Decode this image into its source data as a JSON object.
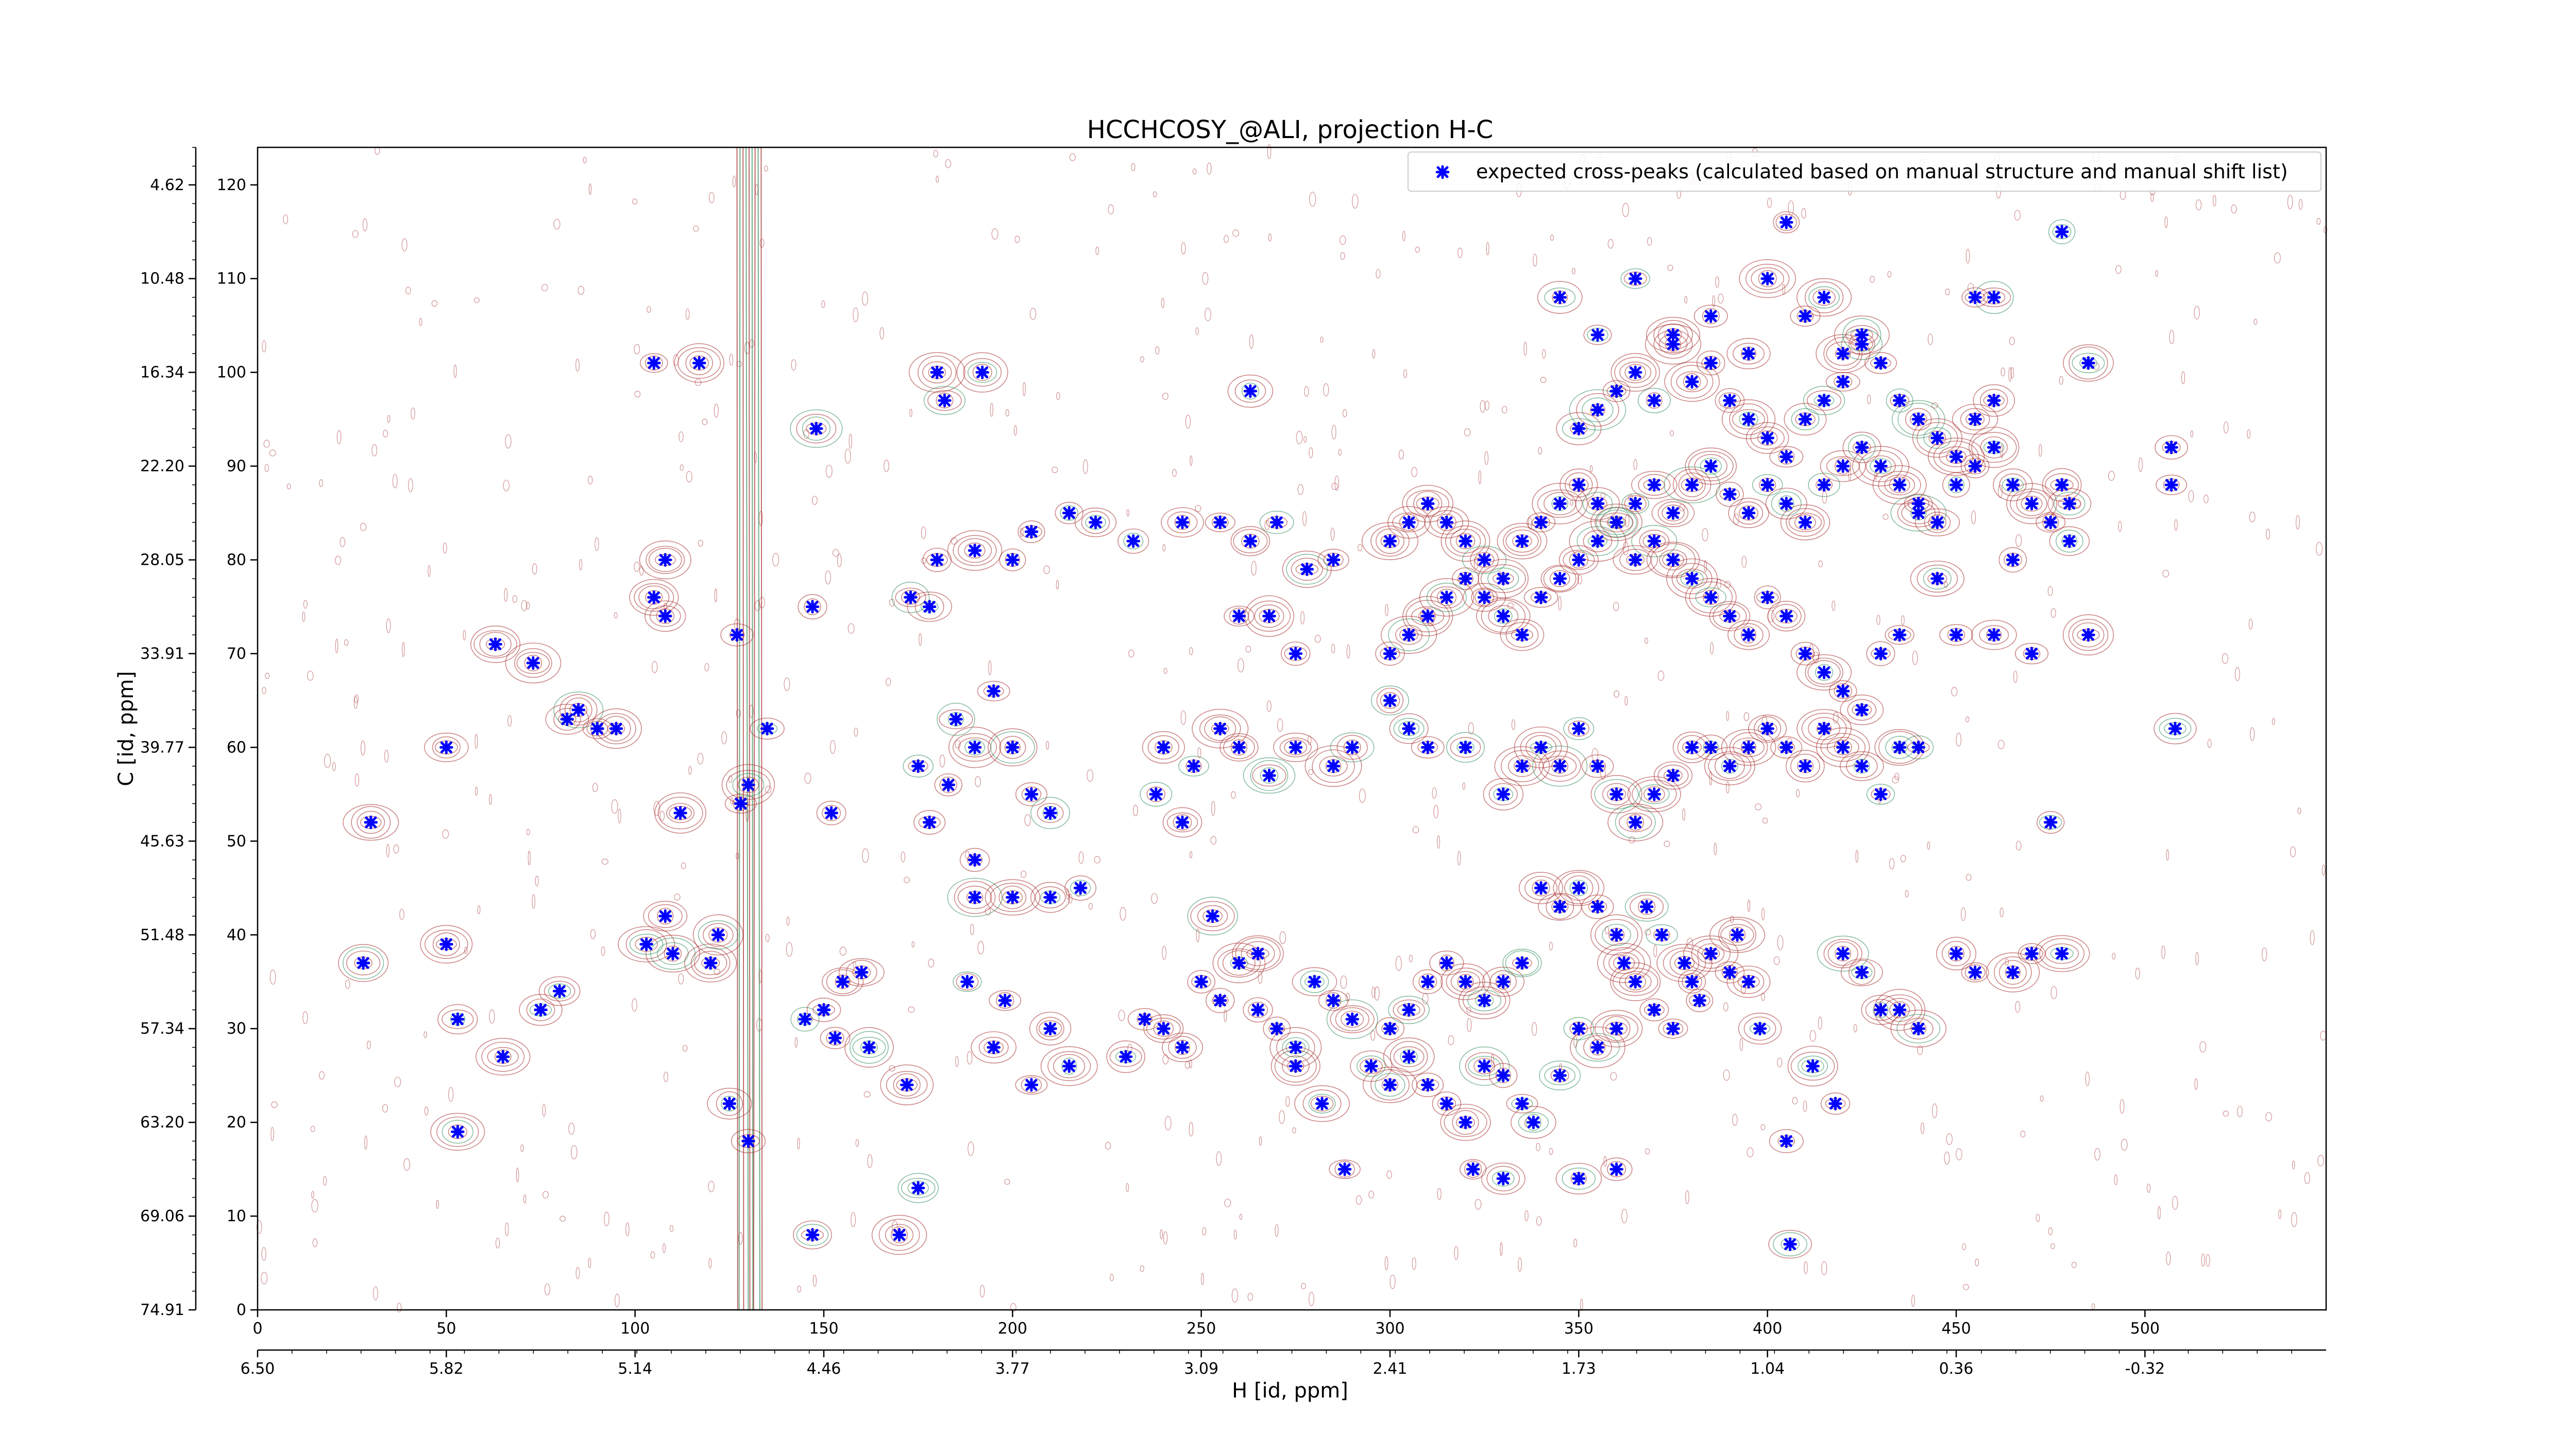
{
  "chart_data": {
    "type": "scatter",
    "title": "HCCHCOSY_@ALI, projection H-C",
    "xlabel": "H [id, ppm]",
    "ylabel": "C [id, ppm]",
    "xlim": [
      0,
      548
    ],
    "ylim": [
      0,
      124
    ],
    "x_ticks_primary": [
      0,
      50,
      100,
      150,
      200,
      250,
      300,
      350,
      400,
      450,
      500
    ],
    "y_ticks_primary": [
      0,
      10,
      20,
      30,
      40,
      50,
      60,
      70,
      80,
      90,
      100,
      110,
      120
    ],
    "x_ticks_secondary": [
      "6.50",
      "5.82",
      "5.14",
      "4.46",
      "3.77",
      "3.09",
      "2.41",
      "1.73",
      "1.04",
      "0.36",
      "-0.32"
    ],
    "y_ticks_secondary": [
      "74.91",
      "69.06",
      "63.20",
      "57.34",
      "51.48",
      "45.63",
      "39.77",
      "33.91",
      "28.05",
      "22.20",
      "16.34",
      "10.48",
      "4.62"
    ],
    "legend": {
      "placement": "upper right",
      "entries": [
        "expected cross-peaks (calculated based on manual structure and manual shift list)"
      ]
    },
    "colors": {
      "marker": "#0000ff",
      "contour_positive": "#a52a2a",
      "contour_negative": "#2e8b57"
    },
    "grid": false,
    "series": [
      {
        "name": "expected cross-peaks (calculated based on manual structure and manual shift list)",
        "points": [
          [
            30,
            52
          ],
          [
            28,
            37
          ],
          [
            50,
            60
          ],
          [
            50,
            39
          ],
          [
            53,
            31
          ],
          [
            53,
            19
          ],
          [
            65,
            27
          ],
          [
            63,
            71
          ],
          [
            73,
            69
          ],
          [
            75,
            32
          ],
          [
            80,
            34
          ],
          [
            82,
            63
          ],
          [
            85,
            64
          ],
          [
            90,
            62
          ],
          [
            95,
            62
          ],
          [
            105,
            76
          ],
          [
            108,
            74
          ],
          [
            103,
            39
          ],
          [
            108,
            42
          ],
          [
            110,
            38
          ],
          [
            112,
            53
          ],
          [
            108,
            80
          ],
          [
            105,
            101
          ],
          [
            117,
            101
          ],
          [
            120,
            37
          ],
          [
            122,
            40
          ],
          [
            127,
            72
          ],
          [
            130,
            56
          ],
          [
            135,
            62
          ],
          [
            130,
            18
          ],
          [
            125,
            22
          ],
          [
            128,
            54
          ],
          [
            145,
            31
          ],
          [
            147,
            8
          ],
          [
            148,
            94
          ],
          [
            150,
            32
          ],
          [
            147,
            75
          ],
          [
            153,
            29
          ],
          [
            155,
            35
          ],
          [
            152,
            53
          ],
          [
            160,
            36
          ],
          [
            162,
            28
          ],
          [
            170,
            8
          ],
          [
            172,
            24
          ],
          [
            175,
            13
          ],
          [
            173,
            76
          ],
          [
            178,
            75
          ],
          [
            180,
            80
          ],
          [
            175,
            58
          ],
          [
            183,
            56
          ],
          [
            190,
            60
          ],
          [
            178,
            52
          ],
          [
            188,
            35
          ],
          [
            198,
            33
          ],
          [
            195,
            28
          ],
          [
            205,
            24
          ],
          [
            210,
            30
          ],
          [
            215,
            26
          ],
          [
            190,
            44
          ],
          [
            200,
            44
          ],
          [
            210,
            44
          ],
          [
            218,
            45
          ],
          [
            180,
            100
          ],
          [
            192,
            100
          ],
          [
            182,
            97
          ],
          [
            190,
            81
          ],
          [
            200,
            80
          ],
          [
            205,
            83
          ],
          [
            215,
            85
          ],
          [
            222,
            84
          ],
          [
            232,
            82
          ],
          [
            185,
            63
          ],
          [
            195,
            66
          ],
          [
            200,
            60
          ],
          [
            205,
            55
          ],
          [
            210,
            53
          ],
          [
            190,
            48
          ],
          [
            230,
            27
          ],
          [
            235,
            31
          ],
          [
            240,
            30
          ],
          [
            245,
            28
          ],
          [
            250,
            35
          ],
          [
            255,
            33
          ],
          [
            260,
            37
          ],
          [
            265,
            32
          ],
          [
            270,
            30
          ],
          [
            275,
            28
          ],
          [
            280,
            35
          ],
          [
            285,
            33
          ],
          [
            290,
            31
          ],
          [
            263,
            98
          ],
          [
            263,
            82
          ],
          [
            270,
            84
          ],
          [
            278,
            79
          ],
          [
            285,
            80
          ],
          [
            245,
            84
          ],
          [
            255,
            84
          ],
          [
            260,
            74
          ],
          [
            268,
            74
          ],
          [
            275,
            70
          ],
          [
            240,
            60
          ],
          [
            248,
            58
          ],
          [
            255,
            62
          ],
          [
            260,
            60
          ],
          [
            268,
            57
          ],
          [
            275,
            60
          ],
          [
            285,
            58
          ],
          [
            290,
            60
          ],
          [
            238,
            55
          ],
          [
            245,
            52
          ],
          [
            253,
            42
          ],
          [
            265,
            38
          ],
          [
            275,
            26
          ],
          [
            282,
            22
          ],
          [
            288,
            15
          ],
          [
            295,
            26
          ],
          [
            300,
            24
          ],
          [
            305,
            27
          ],
          [
            310,
            24
          ],
          [
            315,
            22
          ],
          [
            320,
            20
          ],
          [
            325,
            26
          ],
          [
            330,
            25
          ],
          [
            335,
            22
          ],
          [
            338,
            20
          ],
          [
            345,
            25
          ],
          [
            350,
            30
          ],
          [
            355,
            28
          ],
          [
            360,
            30
          ],
          [
            365,
            35
          ],
          [
            370,
            32
          ],
          [
            375,
            30
          ],
          [
            380,
            35
          ],
          [
            385,
            38
          ],
          [
            390,
            36
          ],
          [
            392,
            40
          ],
          [
            395,
            35
          ],
          [
            398,
            30
          ],
          [
            340,
            45
          ],
          [
            345,
            43
          ],
          [
            350,
            45
          ],
          [
            355,
            43
          ],
          [
            360,
            40
          ],
          [
            362,
            37
          ],
          [
            368,
            43
          ],
          [
            372,
            40
          ],
          [
            378,
            37
          ],
          [
            382,
            33
          ],
          [
            300,
            30
          ],
          [
            305,
            32
          ],
          [
            310,
            35
          ],
          [
            315,
            37
          ],
          [
            320,
            35
          ],
          [
            325,
            33
          ],
          [
            330,
            35
          ],
          [
            335,
            37
          ],
          [
            322,
            15
          ],
          [
            330,
            14
          ],
          [
            350,
            14
          ],
          [
            360,
            15
          ],
          [
            405,
            18
          ],
          [
            406,
            7
          ],
          [
            412,
            26
          ],
          [
            418,
            22
          ],
          [
            420,
            38
          ],
          [
            425,
            36
          ],
          [
            430,
            32
          ],
          [
            435,
            32
          ],
          [
            440,
            30
          ],
          [
            450,
            38
          ],
          [
            455,
            36
          ],
          [
            465,
            36
          ],
          [
            470,
            38
          ],
          [
            300,
            65
          ],
          [
            305,
            62
          ],
          [
            310,
            60
          ],
          [
            320,
            60
          ],
          [
            330,
            55
          ],
          [
            335,
            58
          ],
          [
            340,
            60
          ],
          [
            345,
            58
          ],
          [
            350,
            62
          ],
          [
            355,
            58
          ],
          [
            360,
            55
          ],
          [
            365,
            52
          ],
          [
            370,
            55
          ],
          [
            375,
            57
          ],
          [
            380,
            60
          ],
          [
            385,
            60
          ],
          [
            390,
            58
          ],
          [
            395,
            60
          ],
          [
            400,
            62
          ],
          [
            405,
            60
          ],
          [
            410,
            58
          ],
          [
            415,
            62
          ],
          [
            420,
            60
          ],
          [
            425,
            58
          ],
          [
            430,
            55
          ],
          [
            435,
            60
          ],
          [
            440,
            60
          ],
          [
            300,
            70
          ],
          [
            305,
            72
          ],
          [
            310,
            74
          ],
          [
            315,
            76
          ],
          [
            320,
            78
          ],
          [
            325,
            76
          ],
          [
            330,
            74
          ],
          [
            335,
            72
          ],
          [
            340,
            76
          ],
          [
            345,
            78
          ],
          [
            350,
            80
          ],
          [
            355,
            82
          ],
          [
            360,
            84
          ],
          [
            365,
            86
          ],
          [
            370,
            88
          ],
          [
            375,
            85
          ],
          [
            380,
            88
          ],
          [
            385,
            90
          ],
          [
            390,
            87
          ],
          [
            395,
            85
          ],
          [
            400,
            88
          ],
          [
            405,
            86
          ],
          [
            410,
            84
          ],
          [
            415,
            88
          ],
          [
            420,
            90
          ],
          [
            425,
            92
          ],
          [
            430,
            90
          ],
          [
            435,
            88
          ],
          [
            440,
            86
          ],
          [
            445,
            84
          ],
          [
            450,
            88
          ],
          [
            455,
            90
          ],
          [
            460,
            92
          ],
          [
            465,
            88
          ],
          [
            470,
            86
          ],
          [
            475,
            84
          ],
          [
            480,
            86
          ],
          [
            300,
            82
          ],
          [
            305,
            84
          ],
          [
            310,
            86
          ],
          [
            315,
            84
          ],
          [
            320,
            82
          ],
          [
            325,
            80
          ],
          [
            330,
            78
          ],
          [
            335,
            82
          ],
          [
            340,
            84
          ],
          [
            345,
            86
          ],
          [
            350,
            88
          ],
          [
            355,
            86
          ],
          [
            360,
            84
          ],
          [
            365,
            80
          ],
          [
            370,
            82
          ],
          [
            375,
            80
          ],
          [
            380,
            78
          ],
          [
            385,
            76
          ],
          [
            390,
            74
          ],
          [
            395,
            72
          ],
          [
            400,
            76
          ],
          [
            405,
            74
          ],
          [
            410,
            70
          ],
          [
            415,
            68
          ],
          [
            420,
            66
          ],
          [
            425,
            64
          ],
          [
            430,
            70
          ],
          [
            435,
            72
          ],
          [
            350,
            94
          ],
          [
            355,
            96
          ],
          [
            360,
            98
          ],
          [
            365,
            100
          ],
          [
            370,
            97
          ],
          [
            375,
            103
          ],
          [
            380,
            99
          ],
          [
            385,
            101
          ],
          [
            390,
            97
          ],
          [
            395,
            95
          ],
          [
            400,
            93
          ],
          [
            405,
            91
          ],
          [
            410,
            95
          ],
          [
            415,
            97
          ],
          [
            420,
            99
          ],
          [
            425,
            103
          ],
          [
            430,
            101
          ],
          [
            435,
            97
          ],
          [
            440,
            95
          ],
          [
            445,
            93
          ],
          [
            450,
            91
          ],
          [
            455,
            95
          ],
          [
            460,
            97
          ],
          [
            345,
            108
          ],
          [
            355,
            104
          ],
          [
            365,
            110
          ],
          [
            375,
            104
          ],
          [
            385,
            106
          ],
          [
            395,
            102
          ],
          [
            400,
            110
          ],
          [
            405,
            116
          ],
          [
            410,
            106
          ],
          [
            415,
            108
          ],
          [
            420,
            102
          ],
          [
            425,
            104
          ],
          [
            455,
            108
          ],
          [
            460,
            108
          ],
          [
            478,
            115
          ],
          [
            485,
            101
          ],
          [
            507,
            92
          ],
          [
            507,
            88
          ],
          [
            478,
            88
          ],
          [
            480,
            82
          ],
          [
            485,
            72
          ],
          [
            475,
            52
          ],
          [
            478,
            38
          ],
          [
            508,
            62
          ],
          [
            470,
            70
          ],
          [
            440,
            85
          ],
          [
            445,
            78
          ],
          [
            450,
            72
          ],
          [
            460,
            72
          ],
          [
            465,
            80
          ]
        ]
      }
    ],
    "annotations": []
  }
}
